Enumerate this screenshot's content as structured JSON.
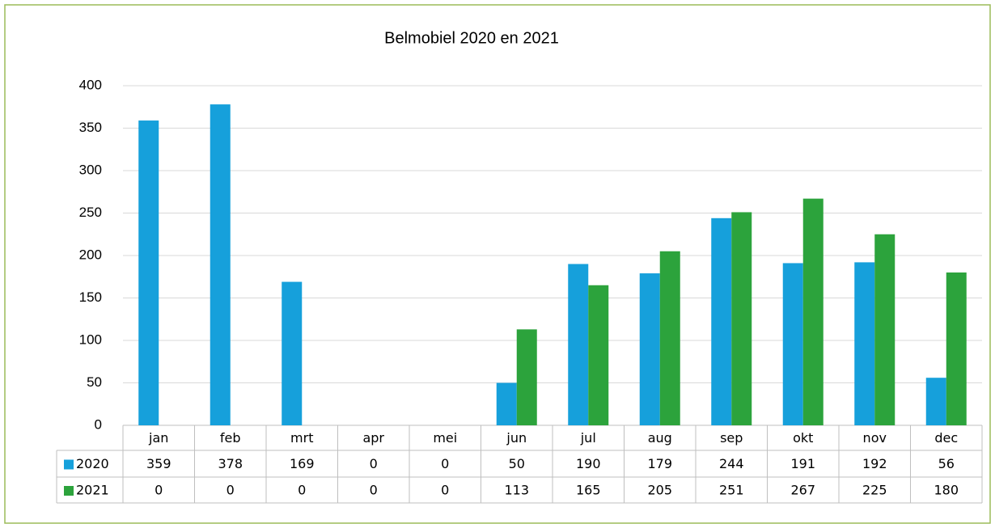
{
  "chart_data": {
    "type": "bar",
    "title": "Belmobiel 2020 en 2021",
    "categories": [
      "jan",
      "feb",
      "mrt",
      "apr",
      "mei",
      "jun",
      "jul",
      "aug",
      "sep",
      "okt",
      "nov",
      "dec"
    ],
    "series": [
      {
        "name": "2020",
        "color": "#16a0db",
        "values": [
          359,
          378,
          169,
          0,
          0,
          50,
          190,
          179,
          244,
          191,
          192,
          56
        ]
      },
      {
        "name": "2021",
        "color": "#2ca33c",
        "values": [
          0,
          0,
          0,
          0,
          0,
          113,
          165,
          205,
          251,
          267,
          225,
          180
        ]
      }
    ],
    "ylim": [
      0,
      400
    ],
    "yticks": [
      0,
      50,
      100,
      150,
      200,
      250,
      300,
      350,
      400
    ],
    "grid": true
  }
}
